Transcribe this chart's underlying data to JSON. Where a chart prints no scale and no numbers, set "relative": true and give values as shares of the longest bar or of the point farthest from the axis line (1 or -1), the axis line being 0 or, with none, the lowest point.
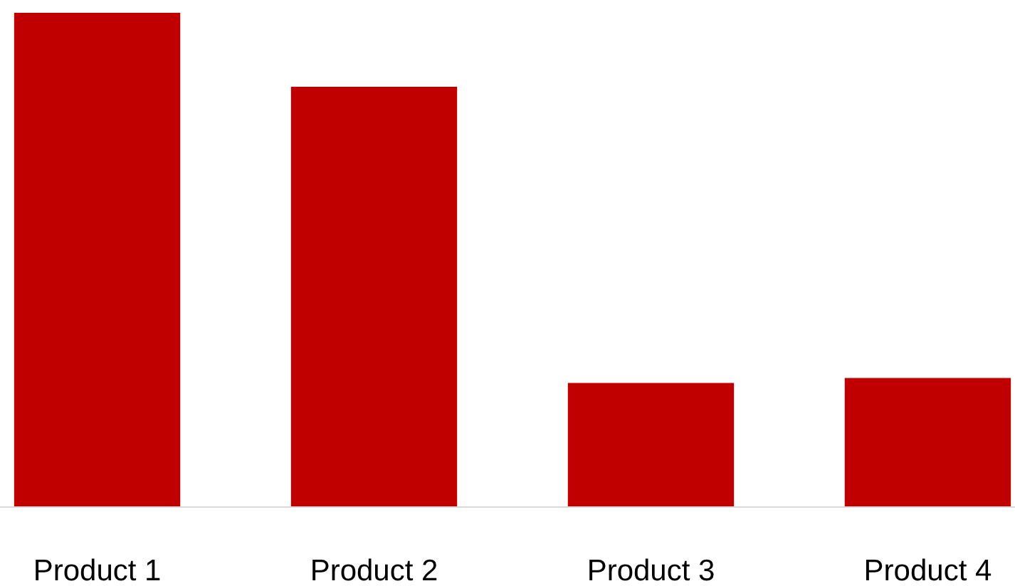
{
  "chart_data": {
    "type": "bar",
    "relative": true,
    "categories": [
      "Product 1",
      "Product 2",
      "Product 3",
      "Product 4"
    ],
    "values": [
      1,
      0.85,
      0.25,
      0.26
    ],
    "color": "#c00000"
  }
}
